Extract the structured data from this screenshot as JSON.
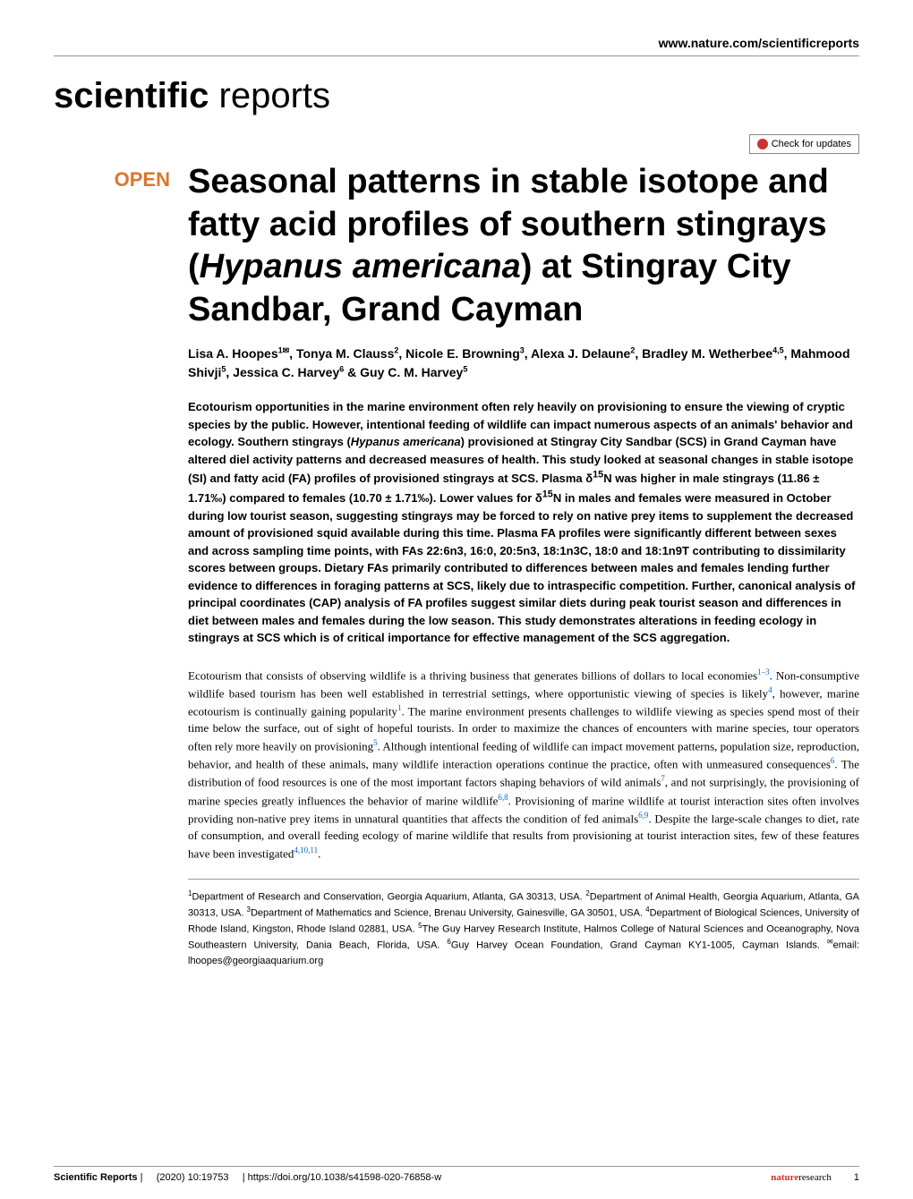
{
  "header": {
    "url": "www.nature.com/scientificreports",
    "journal_bold": "scientific",
    "journal_light": " reports",
    "check_updates": "Check for updates"
  },
  "article": {
    "open_label": "OPEN",
    "title_pre": "Seasonal patterns in stable isotope and fatty acid profiles of southern stingrays (",
    "title_italic": "Hypanus americana",
    "title_post": ") at Stingray City Sandbar, Grand Cayman",
    "authors_html": "Lisa A. Hoopes<sup>1✉</sup>, Tonya M. Clauss<sup>2</sup>, Nicole E. Browning<sup>3</sup>, Alexa J. Delaune<sup>2</sup>, Bradley M. Wetherbee<sup>4,5</sup>, Mahmood Shivji<sup>5</sup>, Jessica C. Harvey<sup>6</sup> & Guy C. M. Harvey<sup>5</sup>",
    "abstract_pre": "Ecotourism opportunities in the marine environment often rely heavily on provisioning to ensure the viewing of cryptic species by the public. However, intentional feeding of wildlife can impact numerous aspects of an animals' behavior and ecology. Southern stingrays (",
    "abstract_italic": "Hypanus americana",
    "abstract_post": ") provisioned at Stingray City Sandbar (SCS) in Grand Cayman have altered diel activity patterns and decreased measures of health. This study looked at seasonal changes in stable isotope (SI) and fatty acid (FA) profiles of provisioned stingrays at SCS. Plasma δ<sup>15</sup>N was higher in male stingrays (11.86 ± 1.71‰) compared to females (10.70 ± 1.71‰). Lower values for δ<sup>15</sup>N in males and females were measured in October during low tourist season, suggesting stingrays may be forced to rely on native prey items to supplement the decreased amount of provisioned squid available during this time. Plasma FA profiles were significantly different between sexes and across sampling time points, with FAs 22:6n3, 16:0, 20:5n3, 18:1n3C, 18:0 and 18:1n9T contributing to dissimilarity scores between groups. Dietary FAs primarily contributed to differences between males and females lending further evidence to differences in foraging patterns at SCS, likely due to intraspecific competition. Further, canonical analysis of principal coordinates (CAP) analysis of FA profiles suggest similar diets during peak tourist season and differences in diet between males and females during the low season. This study demonstrates alterations in feeding ecology in stingrays at SCS which is of critical importance for effective management of the SCS aggregation.",
    "body_html": "Ecotourism that consists of observing wildlife is a thriving business that generates billions of dollars to local economies<sup>1–3</sup>. Non-consumptive wildlife based tourism has been well established in terrestrial settings, where opportunistic viewing of species is likely<sup>4</sup>, however, marine ecotourism is continually gaining popularity<sup>1</sup>. The marine environment presents challenges to wildlife viewing as species spend most of their time below the surface, out of sight of hopeful tourists. In order to maximize the chances of encounters with marine species, tour operators often rely more heavily on provisioning<sup>5</sup>. Although intentional feeding of wildlife can impact movement patterns, population size, reproduction, behavior, and health of these animals, many wildlife interaction operations continue the practice, often with unmeasured consequences<sup>6</sup>. The distribution of food resources is one of the most important factors shaping behaviors of wild animals<sup>7</sup>, and not surprisingly, the provisioning of marine species greatly influences the behavior of marine wildlife<sup>6,8</sup>. Provisioning of marine wildlife at tourist interaction sites often involves providing non-native prey items in unnatural quantities that affects the condition of fed animals<sup>6,9</sup>. Despite the large-scale changes to diet, rate of consumption, and overall feeding ecology of marine wildlife that results from provisioning at tourist interaction sites, few of these features have been investigated<sup>4,10,11</sup>.",
    "affiliations_html": "<sup>1</sup>Department of Research and Conservation, Georgia Aquarium, Atlanta, GA 30313, USA. <sup>2</sup>Department of Animal Health, Georgia Aquarium, Atlanta, GA 30313, USA. <sup>3</sup>Department of Mathematics and Science, Brenau University, Gainesville, GA 30501, USA. <sup>4</sup>Department of Biological Sciences, University of Rhode Island, Kingston, Rhode Island 02881, USA. <sup>5</sup>The Guy Harvey Research Institute, Halmos College of Natural Sciences and Oceanography, Nova Southeastern University, Dania Beach, Florida, USA. <sup>6</sup>Guy Harvey Ocean Foundation, Grand Cayman KY1-1005, Cayman Islands. <sup>✉</sup>email: lhoopes@georgiaaquarium.org"
  },
  "footer": {
    "journal": "Scientific Reports",
    "citation": "(2020) 10:19753",
    "divider": "|",
    "doi": "https://doi.org/10.1038/s41598-020-76858-w",
    "publisher_bold": "nature",
    "publisher_light": "research",
    "page": "1"
  },
  "colors": {
    "open_badge": "#d97730",
    "ref_link": "#0066cc",
    "nature_red": "#cc3333",
    "rule": "#999999"
  }
}
